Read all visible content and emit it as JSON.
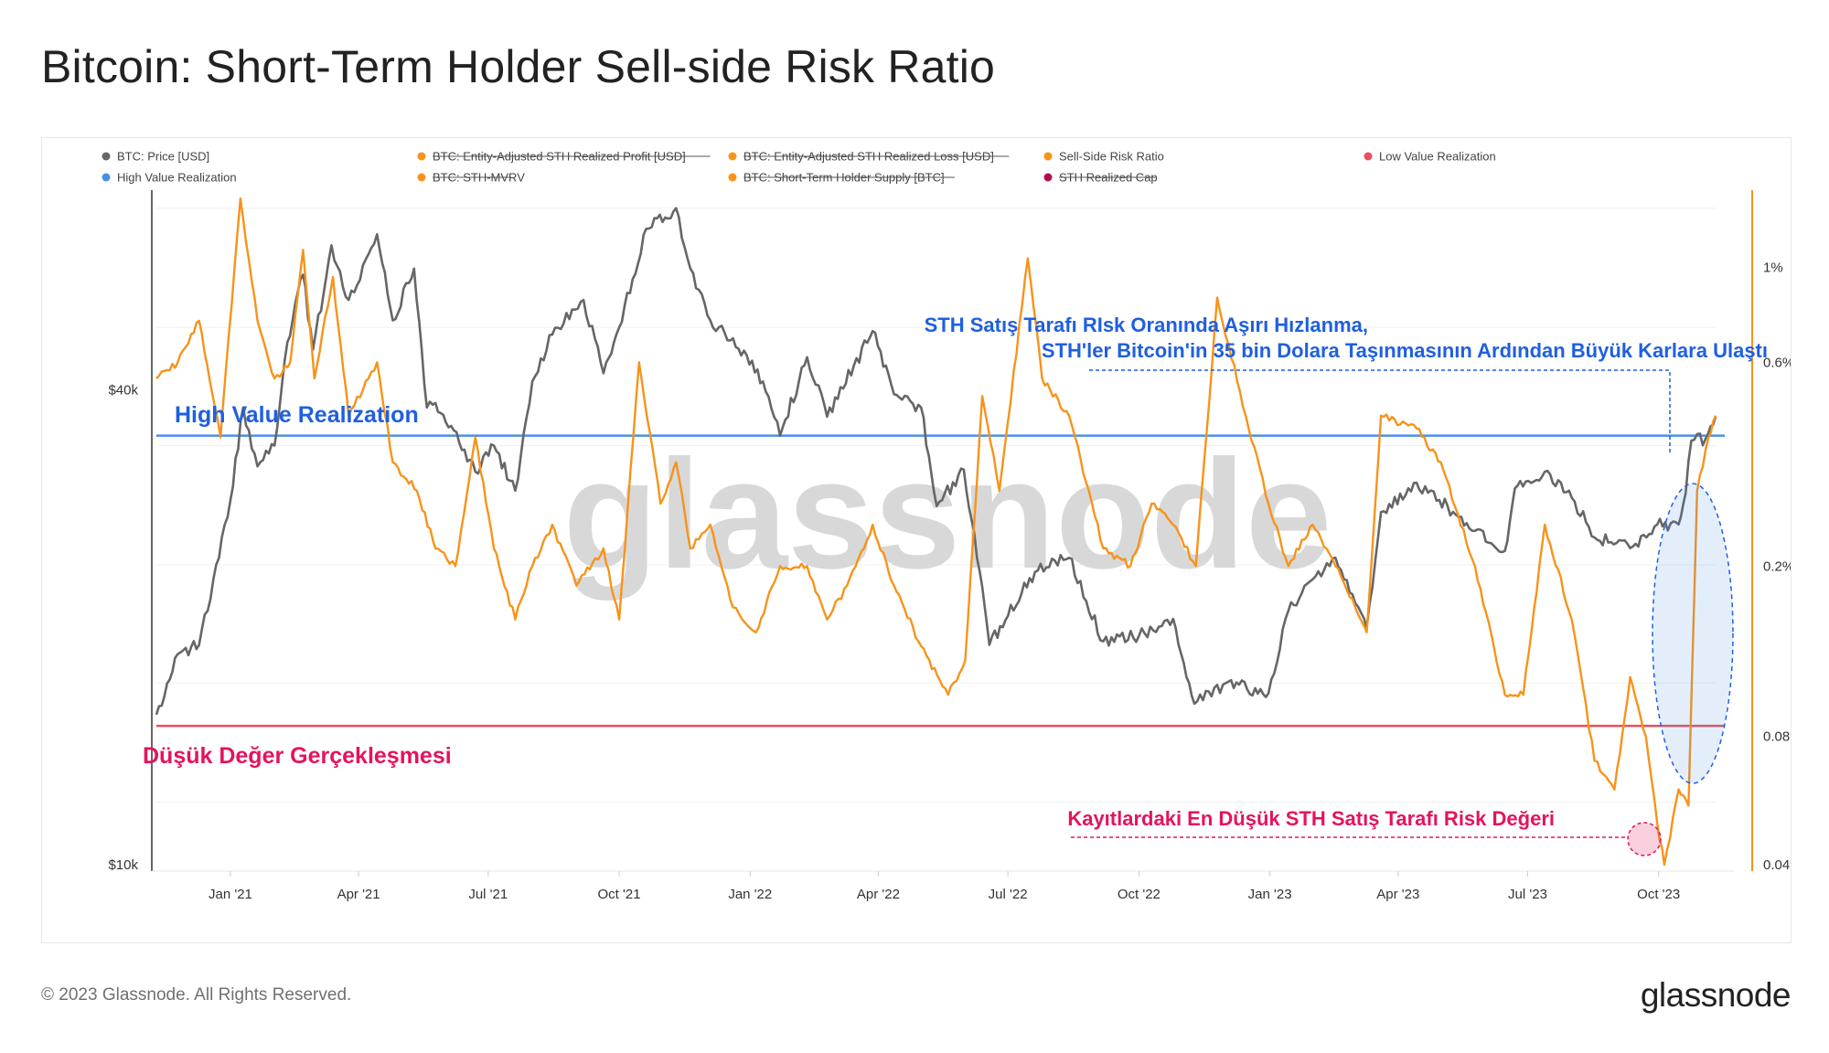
{
  "title": "Bitcoin: Short-Term Holder Sell-side Risk Ratio",
  "footer": {
    "copyright": "© 2023 Glassnode. All Rights Reserved.",
    "logo": "glassnode"
  },
  "watermark": "glassnode",
  "legend": [
    {
      "label": "BTC: Price [USD]",
      "color": "#666666",
      "active": true,
      "row": 0
    },
    {
      "label": "BTC: Entity-Adjusted STH Realized Profit [USD]",
      "color": "#f7931a",
      "active": false,
      "row": 0
    },
    {
      "label": "BTC: Entity-Adjusted STH Realized Loss [USD]",
      "color": "#f7931a",
      "active": false,
      "row": 0
    },
    {
      "label": "Sell-Side Risk Ratio",
      "color": "#f7931a",
      "active": true,
      "row": 0
    },
    {
      "label": "Low Value Realization",
      "color": "#e8505b",
      "active": true,
      "row": 0
    },
    {
      "label": "High Value Realization",
      "color": "#4a8fe7",
      "active": true,
      "row": 1
    },
    {
      "label": "BTC: STH-MVRV",
      "color": "#f7931a",
      "active": false,
      "row": 1
    },
    {
      "label": "BTC: Short-Term Holder Supply [BTC]",
      "color": "#f7931a",
      "active": false,
      "row": 1
    },
    {
      "label": "STH Realized Cap",
      "color": "#b0104e",
      "active": false,
      "row": 1
    }
  ],
  "annotations": {
    "high_value_label": "High Value Realization",
    "low_value_label": "Düşük Değer Gerçekleşmesi",
    "spike_line1": "STH Satış Tarafı RIsk Oranında Aşırı Hızlanma,",
    "spike_line2": "STH'ler Bitcoin'in 35 bin Dolara Taşınmasının Ardından Büyük Karlara Ulaştı",
    "lowest_label": "Kayıtlardaki En Düşük STH Satış Tarafı Risk Değeri"
  },
  "chart_data": {
    "type": "line",
    "x_axis": {
      "ticks": [
        "Jan '21",
        "Apr '21",
        "Jul '21",
        "Oct '21",
        "Jan '22",
        "Apr '22",
        "Jul '22",
        "Oct '22",
        "Jan '23",
        "Apr '23",
        "Jul '23",
        "Oct '23"
      ],
      "range": [
        "2020-11-10",
        "2023-11-10"
      ]
    },
    "y_left": {
      "label": "BTC Price [USD]",
      "scale": "log",
      "ticks": [
        "$10k",
        "$40k"
      ],
      "tick_values": [
        10000,
        40000
      ],
      "range": [
        10000,
        75000
      ]
    },
    "y_right": {
      "label": "Sell-Side Risk Ratio",
      "scale": "log",
      "ticks": [
        "0.04%",
        "0.08%",
        "0.2%",
        "0.6%",
        "1%"
      ],
      "tick_values": [
        0.04,
        0.08,
        0.2,
        0.6,
        1.0
      ],
      "range": [
        0.04,
        1.65
      ]
    },
    "thresholds": {
      "high_value_realization_usd": 35000,
      "low_value_realization_usd": 15000
    },
    "series": [
      {
        "name": "BTC: Price [USD]",
        "axis": "left",
        "color": "#666666",
        "points": [
          [
            "2020-11-10",
            15500
          ],
          [
            "2020-11-25",
            18500
          ],
          [
            "2020-12-10",
            19000
          ],
          [
            "2020-12-20",
            23000
          ],
          [
            "2021-01-01",
            29000
          ],
          [
            "2021-01-10",
            38000
          ],
          [
            "2021-01-20",
            32000
          ],
          [
            "2021-02-01",
            34000
          ],
          [
            "2021-02-10",
            46000
          ],
          [
            "2021-02-21",
            56000
          ],
          [
            "2021-02-28",
            45000
          ],
          [
            "2021-03-13",
            61000
          ],
          [
            "2021-03-25",
            52000
          ],
          [
            "2021-04-14",
            63000
          ],
          [
            "2021-04-25",
            49000
          ],
          [
            "2021-05-10",
            57000
          ],
          [
            "2021-05-19",
            38000
          ],
          [
            "2021-05-25",
            38500
          ],
          [
            "2021-06-05",
            36000
          ],
          [
            "2021-06-22",
            31500
          ],
          [
            "2021-07-05",
            34000
          ],
          [
            "2021-07-20",
            29800
          ],
          [
            "2021-08-01",
            41000
          ],
          [
            "2021-08-15",
            47000
          ],
          [
            "2021-09-06",
            52000
          ],
          [
            "2021-09-20",
            42000
          ],
          [
            "2021-10-01",
            48000
          ],
          [
            "2021-10-20",
            64000
          ],
          [
            "2021-11-10",
            68000
          ],
          [
            "2021-11-20",
            57000
          ],
          [
            "2021-12-04",
            49000
          ],
          [
            "2021-12-20",
            46500
          ],
          [
            "2022-01-10",
            41000
          ],
          [
            "2022-01-22",
            35000
          ],
          [
            "2022-02-10",
            44000
          ],
          [
            "2022-02-24",
            37000
          ],
          [
            "2022-03-28",
            47500
          ],
          [
            "2022-04-12",
            39500
          ],
          [
            "2022-05-01",
            38000
          ],
          [
            "2022-05-12",
            28500
          ],
          [
            "2022-05-31",
            31700
          ],
          [
            "2022-06-13",
            22500
          ],
          [
            "2022-06-18",
            19000
          ],
          [
            "2022-07-20",
            23500
          ],
          [
            "2022-08-13",
            24500
          ],
          [
            "2022-09-06",
            19200
          ],
          [
            "2022-10-01",
            19500
          ],
          [
            "2022-10-25",
            20500
          ],
          [
            "2022-11-09",
            16000
          ],
          [
            "2022-12-01",
            17000
          ],
          [
            "2022-12-31",
            16500
          ],
          [
            "2023-01-14",
            21000
          ],
          [
            "2023-01-31",
            23000
          ],
          [
            "2023-02-16",
            24500
          ],
          [
            "2023-03-10",
            20000
          ],
          [
            "2023-03-20",
            28000
          ],
          [
            "2023-04-14",
            30500
          ],
          [
            "2023-04-30",
            29000
          ],
          [
            "2023-05-25",
            26500
          ],
          [
            "2023-06-15",
            25000
          ],
          [
            "2023-06-22",
            30000
          ],
          [
            "2023-07-13",
            31500
          ],
          [
            "2023-08-01",
            29200
          ],
          [
            "2023-08-17",
            26000
          ],
          [
            "2023-09-11",
            25200
          ],
          [
            "2023-09-30",
            27000
          ],
          [
            "2023-10-15",
            27000
          ],
          [
            "2023-10-20",
            29600
          ],
          [
            "2023-10-24",
            34500
          ],
          [
            "2023-11-03",
            34700
          ],
          [
            "2023-11-10",
            37000
          ]
        ]
      },
      {
        "name": "Sell-Side Risk Ratio",
        "axis": "right",
        "color": "#f7931a",
        "points": [
          [
            "2020-11-10",
            0.55
          ],
          [
            "2020-11-25",
            0.6
          ],
          [
            "2020-12-10",
            0.75
          ],
          [
            "2020-12-25",
            0.4
          ],
          [
            "2021-01-08",
            1.45
          ],
          [
            "2021-01-20",
            0.75
          ],
          [
            "2021-02-01",
            0.55
          ],
          [
            "2021-02-12",
            0.6
          ],
          [
            "2021-02-21",
            1.1
          ],
          [
            "2021-03-01",
            0.55
          ],
          [
            "2021-03-14",
            0.95
          ],
          [
            "2021-03-25",
            0.45
          ],
          [
            "2021-04-14",
            0.6
          ],
          [
            "2021-04-25",
            0.35
          ],
          [
            "2021-05-12",
            0.3
          ],
          [
            "2021-05-25",
            0.22
          ],
          [
            "2021-06-08",
            0.2
          ],
          [
            "2021-06-22",
            0.4
          ],
          [
            "2021-07-05",
            0.22
          ],
          [
            "2021-07-20",
            0.15
          ],
          [
            "2021-08-01",
            0.2
          ],
          [
            "2021-08-15",
            0.25
          ],
          [
            "2021-09-01",
            0.18
          ],
          [
            "2021-09-20",
            0.22
          ],
          [
            "2021-10-01",
            0.15
          ],
          [
            "2021-10-15",
            0.6
          ],
          [
            "2021-10-30",
            0.28
          ],
          [
            "2021-11-10",
            0.35
          ],
          [
            "2021-11-20",
            0.22
          ],
          [
            "2021-12-04",
            0.25
          ],
          [
            "2021-12-20",
            0.16
          ],
          [
            "2022-01-05",
            0.14
          ],
          [
            "2022-01-22",
            0.2
          ],
          [
            "2022-02-10",
            0.2
          ],
          [
            "2022-02-24",
            0.15
          ],
          [
            "2022-03-10",
            0.18
          ],
          [
            "2022-03-28",
            0.25
          ],
          [
            "2022-04-12",
            0.18
          ],
          [
            "2022-05-01",
            0.13
          ],
          [
            "2022-05-20",
            0.1
          ],
          [
            "2022-06-01",
            0.12
          ],
          [
            "2022-06-13",
            0.5
          ],
          [
            "2022-06-25",
            0.3
          ],
          [
            "2022-07-15",
            1.05
          ],
          [
            "2022-07-25",
            0.55
          ],
          [
            "2022-08-13",
            0.45
          ],
          [
            "2022-09-06",
            0.22
          ],
          [
            "2022-09-25",
            0.2
          ],
          [
            "2022-10-10",
            0.28
          ],
          [
            "2022-10-25",
            0.25
          ],
          [
            "2022-11-10",
            0.2
          ],
          [
            "2022-11-25",
            0.85
          ],
          [
            "2022-12-15",
            0.45
          ],
          [
            "2022-12-31",
            0.28
          ],
          [
            "2023-01-14",
            0.2
          ],
          [
            "2023-01-31",
            0.25
          ],
          [
            "2023-02-16",
            0.2
          ],
          [
            "2023-03-10",
            0.14
          ],
          [
            "2023-03-20",
            0.45
          ],
          [
            "2023-04-14",
            0.42
          ],
          [
            "2023-05-01",
            0.35
          ],
          [
            "2023-05-25",
            0.2
          ],
          [
            "2023-06-15",
            0.1
          ],
          [
            "2023-06-28",
            0.1
          ],
          [
            "2023-07-13",
            0.25
          ],
          [
            "2023-08-01",
            0.15
          ],
          [
            "2023-08-17",
            0.07
          ],
          [
            "2023-08-31",
            0.06
          ],
          [
            "2023-09-11",
            0.11
          ],
          [
            "2023-09-22",
            0.08
          ],
          [
            "2023-09-30",
            0.05
          ],
          [
            "2023-10-05",
            0.04
          ],
          [
            "2023-10-15",
            0.06
          ],
          [
            "2023-10-22",
            0.055
          ],
          [
            "2023-10-28",
            0.3
          ],
          [
            "2023-11-05",
            0.4
          ],
          [
            "2023-11-10",
            0.45
          ]
        ]
      }
    ]
  }
}
